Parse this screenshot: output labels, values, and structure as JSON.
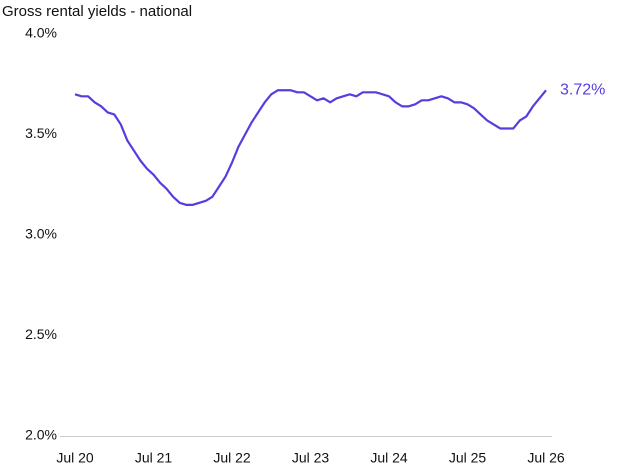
{
  "chart_data": {
    "type": "line",
    "title": "Gross rental yields - national",
    "categories": [
      "Jul 20",
      null,
      null,
      null,
      null,
      null,
      null,
      null,
      null,
      null,
      null,
      null,
      "Jul 21",
      null,
      null,
      null,
      null,
      null,
      null,
      null,
      null,
      null,
      null,
      null,
      "Jul 22",
      null,
      null,
      null,
      null,
      null,
      null,
      null,
      null,
      null,
      null,
      null,
      "Jul 23",
      null,
      null,
      null,
      null,
      null,
      null,
      null,
      null,
      null,
      null,
      null,
      "Jul 24",
      null,
      null,
      null,
      null,
      null,
      null,
      null,
      null,
      null,
      null,
      null,
      "Jul 25",
      null,
      null,
      null,
      null,
      null,
      null,
      null,
      null,
      null,
      null,
      null,
      "Jul 26"
    ],
    "series": [
      {
        "color": "#5a3be0",
        "values": [
          3.7,
          3.69,
          3.69,
          3.66,
          3.64,
          3.61,
          3.6,
          3.55,
          3.47,
          3.42,
          3.37,
          3.33,
          3.3,
          3.26,
          3.23,
          3.19,
          3.16,
          3.15,
          3.15,
          3.16,
          3.17,
          3.19,
          3.24,
          3.29,
          3.36,
          3.44,
          3.5,
          3.56,
          3.61,
          3.66,
          3.7,
          3.72,
          3.72,
          3.72,
          3.71,
          3.71,
          3.69,
          3.67,
          3.68,
          3.66,
          3.68,
          3.69,
          3.7,
          3.69,
          3.71,
          3.71,
          3.71,
          3.7,
          3.69,
          3.66,
          3.64,
          3.64,
          3.65,
          3.67,
          3.67,
          3.68,
          3.69,
          3.68,
          3.66,
          3.66,
          3.65,
          3.63,
          3.6,
          3.57,
          3.55,
          3.53,
          3.53,
          3.53,
          3.57,
          3.59,
          3.64,
          3.68,
          3.72
        ],
        "value_labels": [
          null,
          null,
          null,
          null,
          null,
          null,
          null,
          null,
          null,
          null,
          null,
          null,
          null,
          null,
          null,
          null,
          null,
          null,
          null,
          null,
          null,
          null,
          null,
          null,
          null,
          null,
          null,
          null,
          null,
          null,
          null,
          null,
          null,
          null,
          null,
          null,
          null,
          null,
          null,
          null,
          null,
          null,
          null,
          null,
          null,
          null,
          null,
          null,
          null,
          null,
          null,
          null,
          null,
          null,
          null,
          null,
          null,
          null,
          null,
          null,
          null,
          null,
          null,
          null,
          null,
          null,
          null,
          null,
          null,
          null,
          null,
          null,
          "3.72%"
        ]
      }
    ],
    "ylim": [
      2,
      4
    ],
    "yticks": [
      {
        "value": 2,
        "label": "2.0%"
      },
      {
        "value": 2.5,
        "label": "2.5%"
      },
      {
        "value": 3,
        "label": "3.0%"
      },
      {
        "value": 3.5,
        "label": "3.5%"
      },
      {
        "value": 4,
        "label": "4.0%"
      }
    ],
    "grid": false
  }
}
